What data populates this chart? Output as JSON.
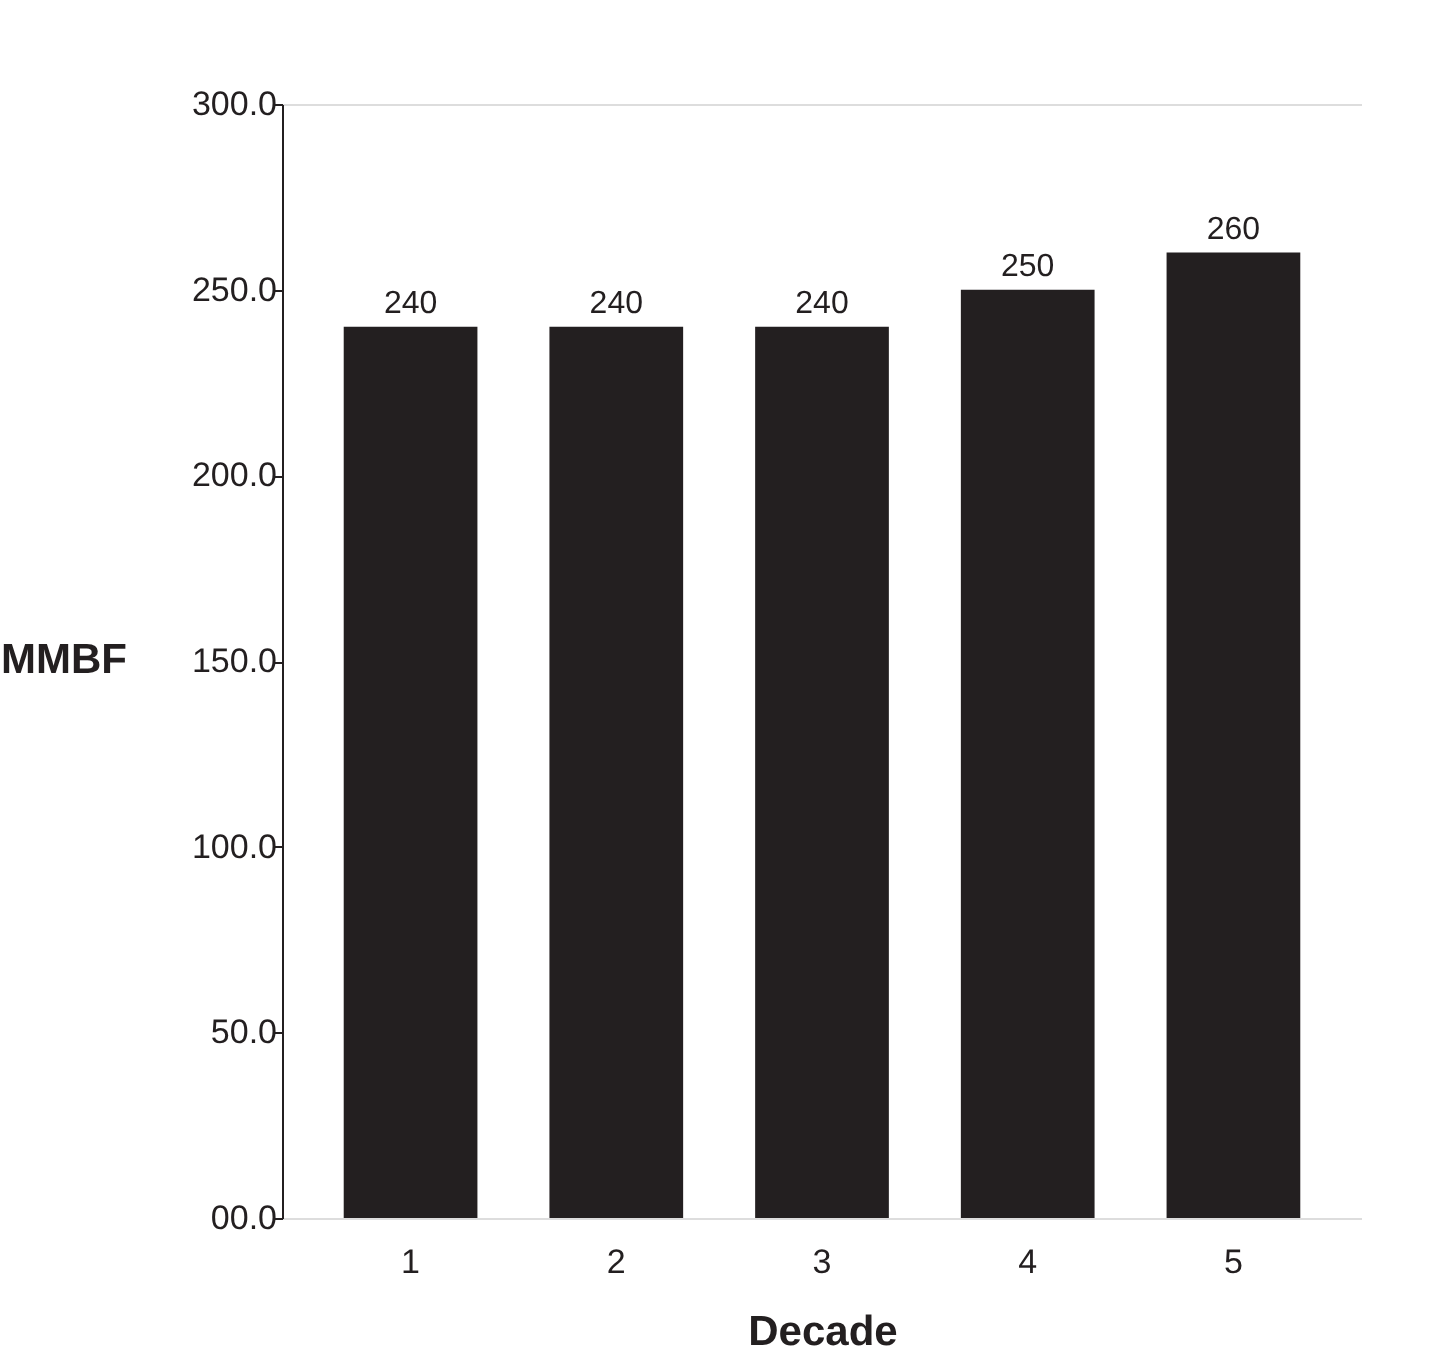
{
  "chart_data": {
    "type": "bar",
    "xlabel": "Decade",
    "ylabel": "MMBF",
    "categories": [
      "1",
      "2",
      "3",
      "4",
      "5"
    ],
    "values": [
      240,
      240,
      240,
      250,
      260
    ],
    "color": "#231f20",
    "ylim": [
      0,
      300
    ],
    "yticks": [
      {
        "value": 0,
        "label": "00.0"
      },
      {
        "value": 50,
        "label": "50.0"
      },
      {
        "value": 100,
        "label": "100.0"
      },
      {
        "value": 150,
        "label": "150.0"
      },
      {
        "value": 200,
        "label": "200.0"
      },
      {
        "value": 250,
        "label": "250.0"
      },
      {
        "value": 300,
        "label": "300.0"
      }
    ],
    "data_labels": true,
    "grid": false
  }
}
